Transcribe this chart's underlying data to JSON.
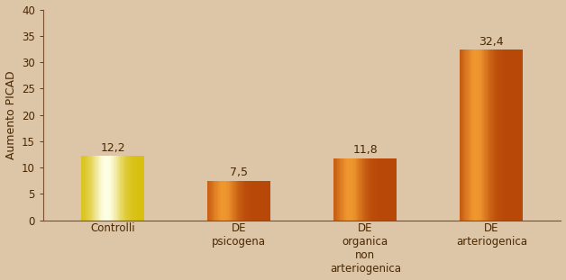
{
  "categories": [
    "Controlli",
    "DE\npsicogena",
    "DE\norganica\nnon\narteriogenica",
    "DE\narteriogenica"
  ],
  "values": [
    12.2,
    7.5,
    11.8,
    32.4
  ],
  "ylabel": "Aumento PICAD",
  "ylim": [
    0,
    40
  ],
  "yticks": [
    0,
    5,
    10,
    15,
    20,
    25,
    30,
    35,
    40
  ],
  "background_color": "#ddc5a8",
  "value_labels": [
    "12,2",
    "7,5",
    "11,8",
    "32,4"
  ],
  "label_fontsize": 9,
  "ylabel_fontsize": 9,
  "tick_fontsize": 8.5,
  "bar_width": 0.5,
  "figsize": [
    6.28,
    3.11
  ],
  "dpi": 100
}
